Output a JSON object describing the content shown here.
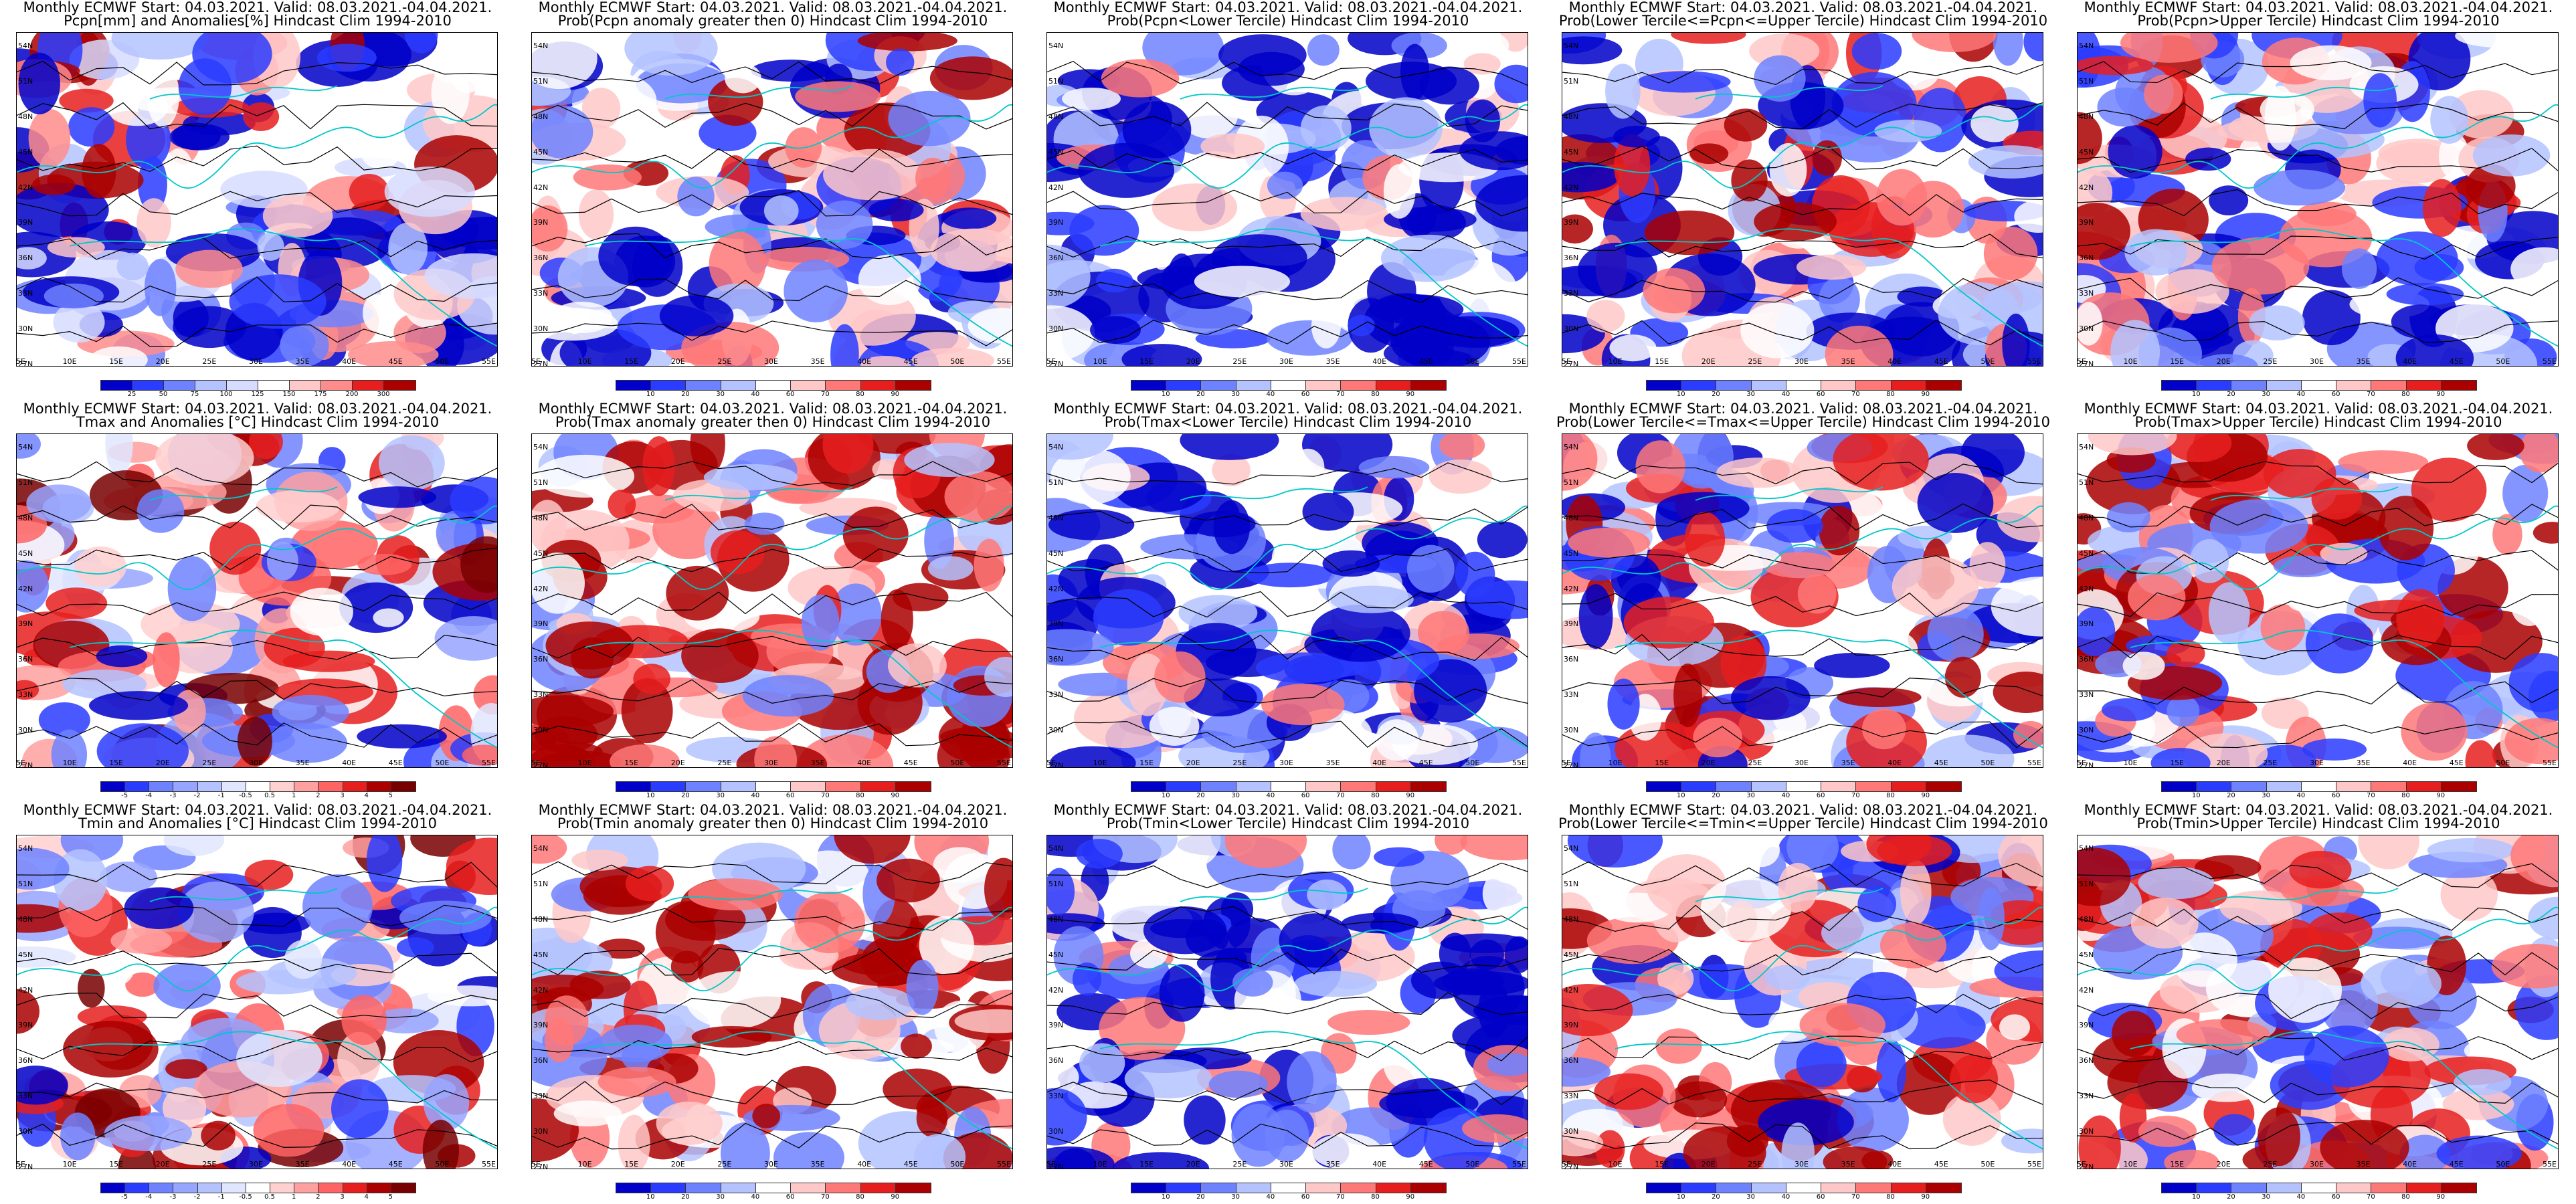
{
  "rows": [
    {
      "variable": "Pcpn",
      "panels": [
        {
          "title1": "Monthly ECMWF Start: 04.03.2021. Valid: 08.03.2021.-04.04.2021.",
          "title2": "Pcpn[mm] and Anomalies[%] Hindcast Clim 1994-2010",
          "scale": "anom",
          "ticks": [
            "25",
            "50",
            "75",
            "100",
            "125",
            "150",
            "175",
            "200",
            "300"
          ]
        },
        {
          "title1": "Monthly ECMWF Start: 04.03.2021. Valid: 08.03.2021.-04.04.2021.",
          "title2": "Prob(Pcpn anomaly greater then 0) Hindcast Clim 1994-2010",
          "scale": "prob",
          "ticks": [
            "10",
            "20",
            "30",
            "40",
            "60",
            "70",
            "80",
            "90"
          ]
        },
        {
          "title1": "Monthly ECMWF Start: 04.03.2021. Valid: 08.03.2021.-04.04.2021.",
          "title2": "Prob(Pcpn<Lower Tercile) Hindcast Clim 1994-2010",
          "scale": "prob",
          "ticks": [
            "10",
            "20",
            "30",
            "40",
            "60",
            "70",
            "80",
            "90"
          ]
        },
        {
          "title1": "Monthly ECMWF Start: 04.03.2021. Valid: 08.03.2021.-04.04.2021.",
          "title2": "Prob(Lower Tercile<=Pcpn<=Upper Tercile) Hindcast Clim 1994-2010",
          "scale": "prob",
          "ticks": [
            "10",
            "20",
            "30",
            "40",
            "60",
            "70",
            "80",
            "90"
          ]
        },
        {
          "title1": "Monthly ECMWF Start: 04.03.2021. Valid: 08.03.2021.-04.04.2021.",
          "title2": "Prob(Pcpn>Upper Tercile) Hindcast Clim 1994-2010",
          "scale": "prob",
          "ticks": [
            "10",
            "20",
            "30",
            "40",
            "60",
            "70",
            "80",
            "90"
          ]
        }
      ]
    },
    {
      "variable": "Tmax",
      "panels": [
        {
          "title1": "Monthly ECMWF Start: 04.03.2021. Valid: 08.03.2021.-04.04.2021.",
          "title2": "Tmax and Anomalies [°C] Hindcast Clim 1994-2010",
          "scale": "temp",
          "ticks": [
            "-5",
            "-4",
            "-3",
            "-2",
            "-1",
            "-0.5",
            "0.5",
            "1",
            "2",
            "3",
            "4",
            "5"
          ]
        },
        {
          "title1": "Monthly ECMWF Start: 04.03.2021. Valid: 08.03.2021.-04.04.2021.",
          "title2": "Prob(Tmax anomaly greater then 0) Hindcast Clim 1994-2010",
          "scale": "prob",
          "ticks": [
            "10",
            "20",
            "30",
            "40",
            "60",
            "70",
            "80",
            "90"
          ]
        },
        {
          "title1": "Monthly ECMWF Start: 04.03.2021. Valid: 08.03.2021.-04.04.2021.",
          "title2": "Prob(Tmax<Lower Tercile) Hindcast Clim 1994-2010",
          "scale": "prob",
          "ticks": [
            "10",
            "20",
            "30",
            "40",
            "60",
            "70",
            "80",
            "90"
          ]
        },
        {
          "title1": "Monthly ECMWF Start: 04.03.2021. Valid: 08.03.2021.-04.04.2021.",
          "title2": "Prob(Lower Tercile<=Tmax<=Upper Tercile) Hindcast Clim 1994-2010",
          "scale": "prob",
          "ticks": [
            "10",
            "20",
            "30",
            "40",
            "60",
            "70",
            "80",
            "90"
          ]
        },
        {
          "title1": "Monthly ECMWF Start: 04.03.2021. Valid: 08.03.2021.-04.04.2021.",
          "title2": "Prob(Tmax>Upper Tercile) Hindcast Clim 1994-2010",
          "scale": "prob",
          "ticks": [
            "10",
            "20",
            "30",
            "40",
            "60",
            "70",
            "80",
            "90"
          ]
        }
      ]
    },
    {
      "variable": "Tmin",
      "panels": [
        {
          "title1": "Monthly ECMWF Start: 04.03.2021. Valid: 08.03.2021.-04.04.2021.",
          "title2": "Tmin and Anomalies [°C] Hindcast Clim 1994-2010",
          "scale": "temp",
          "ticks": [
            "-5",
            "-4",
            "-3",
            "-2",
            "-1",
            "-0.5",
            "0.5",
            "1",
            "2",
            "3",
            "4",
            "5"
          ]
        },
        {
          "title1": "Monthly ECMWF Start: 04.03.2021. Valid: 08.03.2021.-04.04.2021.",
          "title2": "Prob(Tmin anomaly greater then 0) Hindcast Clim 1994-2010",
          "scale": "prob",
          "ticks": [
            "10",
            "20",
            "30",
            "40",
            "60",
            "70",
            "80",
            "90"
          ]
        },
        {
          "title1": "Monthly ECMWF Start: 04.03.2021. Valid: 08.03.2021.-04.04.2021.",
          "title2": "Prob(Tmin<Lower Tercile) Hindcast Clim 1994-2010",
          "scale": "prob",
          "ticks": [
            "10",
            "20",
            "30",
            "40",
            "60",
            "70",
            "80",
            "90"
          ]
        },
        {
          "title1": "Monthly ECMWF Start: 04.03.2021. Valid: 08.03.2021.-04.04.2021.",
          "title2": "Prob(Lower Tercile<=Tmin<=Upper Tercile) Hindcast Clim 1994-2010",
          "scale": "prob",
          "ticks": [
            "10",
            "20",
            "30",
            "40",
            "60",
            "70",
            "80",
            "90"
          ]
        },
        {
          "title1": "Monthly ECMWF Start: 04.03.2021. Valid: 08.03.2021.-04.04.2021.",
          "title2": "Prob(Tmin>Upper Tercile) Hindcast Clim 1994-2010",
          "scale": "prob",
          "ticks": [
            "10",
            "20",
            "30",
            "40",
            "60",
            "70",
            "80",
            "90"
          ]
        }
      ]
    }
  ],
  "lat_labels": [
    "54N",
    "51N",
    "48N",
    "45N",
    "42N",
    "39N",
    "36N",
    "33N",
    "30N",
    "27N"
  ],
  "lon_labels": [
    "5E",
    "10E",
    "15E",
    "20E",
    "25E",
    "30E",
    "35E",
    "40E",
    "45E",
    "50E",
    "55E"
  ],
  "palettes": {
    "prob": [
      "#0000c8",
      "#2a3cff",
      "#6e82ff",
      "#b4c3ff",
      "#ffffff",
      "#ffc8c8",
      "#ff7878",
      "#e61e1e",
      "#aa0000"
    ],
    "anom": [
      "#0000c8",
      "#2a3cff",
      "#6e82ff",
      "#b4c3ff",
      "#d6dcff",
      "#ffffff",
      "#ffc8c8",
      "#ff8c8c",
      "#e61e1e",
      "#aa0000"
    ],
    "temp": [
      "#0000c8",
      "#2a3cff",
      "#6e82ff",
      "#96a5ff",
      "#b4c3ff",
      "#e0e6ff",
      "#ffffff",
      "#ffd0d0",
      "#ffa0a0",
      "#ff6464",
      "#e61e1e",
      "#aa0000",
      "#780000"
    ]
  },
  "colors": {
    "coast": "#00c8c8",
    "contour": "#000000"
  }
}
